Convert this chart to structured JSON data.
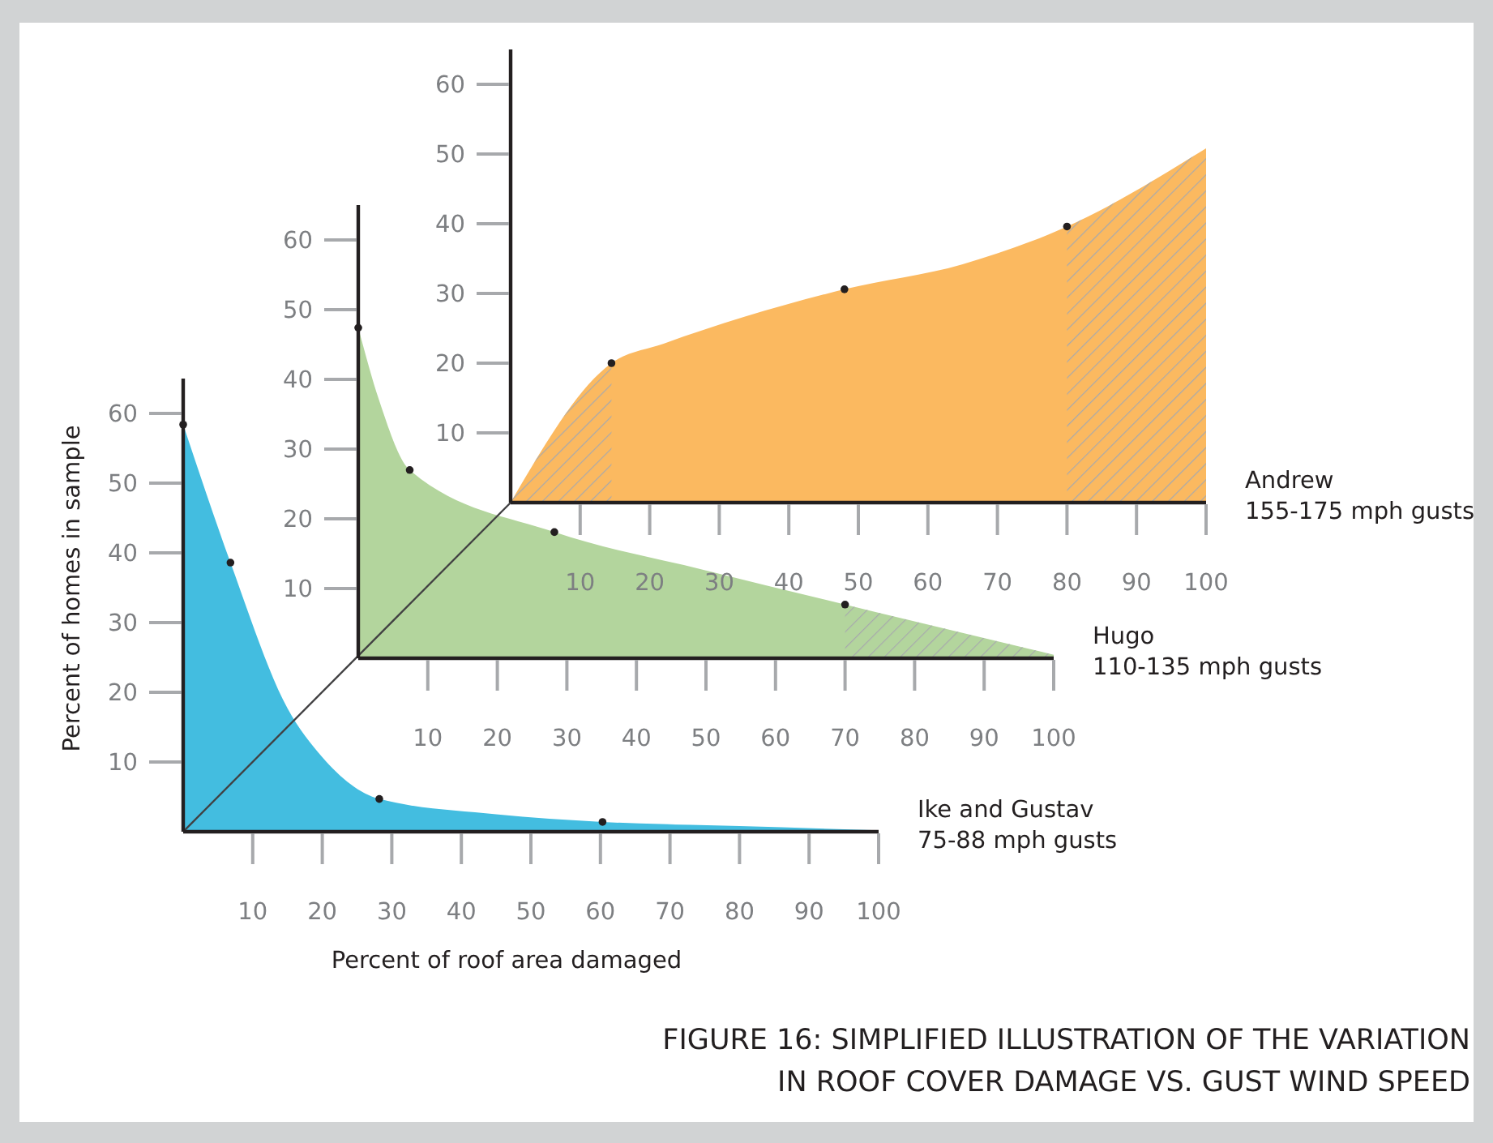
{
  "chart_data": [
    {
      "type": "area",
      "xlabel": "Percent of roof area damaged",
      "ylabel": "Percent of homes in sample",
      "xlim": [
        0,
        100
      ],
      "ylim": [
        0,
        65
      ],
      "xticks": [
        10,
        20,
        30,
        40,
        50,
        60,
        70,
        80,
        90,
        100
      ],
      "yticks": [
        10,
        20,
        30,
        40,
        50,
        60
      ],
      "annotations": [
        "FIGURE 16: SIMPLIFIED ILLUSTRATION OF THE VARIATION\nIN ROOF COVER DAMAGE VS. GUST WIND SPEED"
      ],
      "series": [
        {
          "name": "Ike and Gustav\n75-88 mph gusts",
          "color": "#43bde0",
          "x": [
            0,
            6.8,
            15,
            20,
            28.2,
            45,
            60.3,
            80,
            100
          ],
          "values": [
            58.4,
            38.6,
            17.7,
            10.7,
            4.7,
            2.5,
            1.4,
            0.8,
            0.2
          ]
        },
        {
          "type": "scatter",
          "color": "#231f20",
          "marker": "circle",
          "x": [
            0,
            6.8,
            28.2,
            60.3
          ],
          "values": [
            58.4,
            38.6,
            4.7,
            1.4
          ]
        }
      ]
    },
    {
      "type": "area",
      "xlim": [
        0,
        100
      ],
      "ylim": [
        0,
        65
      ],
      "xticks": [
        10,
        20,
        30,
        40,
        50,
        60,
        70,
        80,
        90,
        100
      ],
      "yticks": [
        10,
        20,
        30,
        40,
        50,
        60
      ],
      "bands": [
        {
          "axis": "x",
          "from": 70,
          "to": 100,
          "color": "#a7a9ac"
        }
      ],
      "series": [
        {
          "name": "Hugo\n110-135 mph gusts",
          "color": "#b3d59d",
          "x": [
            0,
            3,
            7.4,
            28.2,
            50,
            70,
            100
          ],
          "values": [
            47.4,
            37,
            27,
            18.1,
            12.6,
            7.7,
            0.5
          ]
        },
        {
          "type": "scatter",
          "color": "#231f20",
          "marker": "circle",
          "x": [
            0,
            7.4,
            28.2,
            70
          ],
          "values": [
            47.4,
            27,
            18.1,
            7.7
          ]
        }
      ]
    },
    {
      "type": "area",
      "xlim": [
        0,
        100
      ],
      "ylim": [
        0,
        65
      ],
      "xticks": [
        10,
        20,
        30,
        40,
        50,
        60,
        70,
        80,
        90,
        100
      ],
      "yticks": [
        10,
        20,
        30,
        40,
        50,
        60
      ],
      "bands": [
        {
          "axis": "x",
          "from": 0,
          "to": 14.5,
          "color": "#a7a9ac"
        },
        {
          "axis": "x",
          "from": 80,
          "to": 100,
          "color": "#a7a9ac"
        }
      ],
      "series": [
        {
          "name": "Andrew\n155-175 mph gusts",
          "color": "#fbb960",
          "x": [
            0,
            14.5,
            22,
            48,
            65,
            80,
            100
          ],
          "values": [
            0,
            20,
            22.8,
            30.6,
            34.2,
            39.6,
            50.8
          ]
        },
        {
          "type": "scatter",
          "color": "#231f20",
          "marker": "circle",
          "x": [
            14.5,
            48,
            80
          ],
          "values": [
            20,
            30.6,
            39.6
          ]
        }
      ]
    }
  ]
}
